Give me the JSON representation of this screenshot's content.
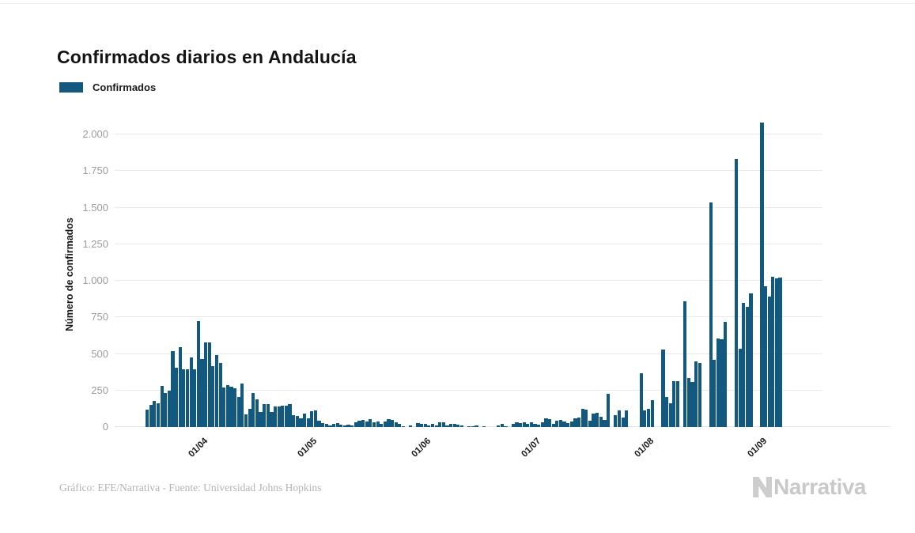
{
  "title": "Confirmados diarios en Andalucía",
  "legend": {
    "label": "Confirmados",
    "color": "#12587F"
  },
  "y_axis": {
    "title": "Número de confirmados",
    "tick_labels": [
      "0",
      "250",
      "500",
      "750",
      "1.000",
      "1.250",
      "1.500",
      "1.750",
      "2.000"
    ]
  },
  "footer": {
    "credit": "Gráfico: EFE/Narrativa - Fuente: Universidad Johns Hopkins",
    "brand": "Narrativa"
  },
  "chart_data": {
    "type": "bar",
    "title": "Confirmados diarios en Andalucía",
    "xlabel": "",
    "ylabel": "Número de confirmados",
    "ylim": [
      0,
      2000
    ],
    "y_ticks": [
      0,
      250,
      500,
      750,
      1000,
      1250,
      1500,
      1750,
      2000
    ],
    "x_tick_labels": [
      "01/04",
      "01/05",
      "01/06",
      "01/07",
      "01/08",
      "01/09"
    ],
    "grid": "horizontal",
    "legend_position": "top-left",
    "dates": [
      "17/03",
      "18/03",
      "19/03",
      "20/03",
      "21/03",
      "22/03",
      "23/03",
      "24/03",
      "25/03",
      "26/03",
      "27/03",
      "28/03",
      "29/03",
      "30/03",
      "31/03",
      "01/04",
      "02/04",
      "03/04",
      "04/04",
      "05/04",
      "06/04",
      "07/04",
      "08/04",
      "09/04",
      "10/04",
      "11/04",
      "12/04",
      "13/04",
      "14/04",
      "15/04",
      "16/04",
      "17/04",
      "18/04",
      "19/04",
      "20/04",
      "21/04",
      "22/04",
      "23/04",
      "24/04",
      "25/04",
      "26/04",
      "27/04",
      "28/04",
      "29/04",
      "30/04",
      "01/05",
      "02/05",
      "03/05",
      "04/05",
      "05/05",
      "06/05",
      "07/05",
      "08/05",
      "09/05",
      "10/05",
      "11/05",
      "12/05",
      "13/05",
      "14/05",
      "15/05",
      "16/05",
      "17/05",
      "18/05",
      "19/05",
      "20/05",
      "21/05",
      "22/05",
      "23/05",
      "24/05",
      "25/05",
      "26/05",
      "27/05",
      "28/05",
      "29/05",
      "30/05",
      "31/05",
      "01/06",
      "02/06",
      "03/06",
      "04/06",
      "05/06",
      "06/06",
      "07/06",
      "08/06",
      "09/06",
      "10/06",
      "11/06",
      "12/06",
      "13/06",
      "14/06",
      "15/06",
      "16/06",
      "17/06",
      "18/06",
      "19/06",
      "20/06",
      "21/06",
      "22/06",
      "23/06",
      "24/06",
      "25/06",
      "26/06",
      "27/06",
      "28/06",
      "29/06",
      "30/06",
      "01/07",
      "02/07",
      "03/07",
      "04/07",
      "05/07",
      "06/07",
      "07/07",
      "08/07",
      "09/07",
      "10/07",
      "11/07",
      "12/07",
      "13/07",
      "14/07",
      "15/07",
      "16/07",
      "17/07",
      "18/07",
      "19/07",
      "20/07",
      "21/07",
      "22/07",
      "23/07",
      "24/07",
      "25/07",
      "26/07",
      "27/07",
      "28/07",
      "29/07",
      "30/07",
      "31/07",
      "01/08",
      "02/08",
      "03/08",
      "04/08",
      "05/08",
      "06/08",
      "07/08",
      "08/08",
      "09/08",
      "10/08",
      "11/08",
      "12/08",
      "13/08",
      "14/08",
      "15/08",
      "16/08",
      "17/08",
      "18/08",
      "19/08",
      "20/08",
      "21/08",
      "22/08",
      "23/08",
      "24/08",
      "25/08",
      "26/08",
      "27/08",
      "28/08",
      "29/08",
      "30/08",
      "31/08",
      "01/09",
      "02/09",
      "03/09",
      "04/09",
      "05/09",
      "06/09"
    ],
    "series": [
      {
        "name": "Confirmados",
        "color": "#12587F",
        "values": [
          119,
          151,
          178,
          164,
          281,
          232,
          250,
          521,
          404,
          548,
          395,
          395,
          476,
          395,
          723,
          463,
          578,
          577,
          416,
          494,
          436,
          268,
          287,
          274,
          263,
          205,
          295,
          88,
          124,
          232,
          187,
          101,
          157,
          157,
          104,
          142,
          142,
          148,
          148,
          157,
          79,
          74,
          58,
          92,
          58,
          106,
          112,
          43,
          29,
          22,
          11,
          22,
          25,
          14,
          11,
          14,
          13,
          31,
          43,
          47,
          38,
          56,
          31,
          38,
          20,
          38,
          56,
          47,
          31,
          20,
          5,
          0,
          13,
          0,
          27,
          23,
          23,
          13,
          20,
          13,
          31,
          34,
          13,
          20,
          20,
          16,
          13,
          0,
          5,
          5,
          13,
          0,
          5,
          0,
          0,
          0,
          13,
          20,
          5,
          0,
          22,
          32,
          27,
          32,
          22,
          32,
          22,
          16,
          32,
          61,
          54,
          22,
          43,
          49,
          38,
          27,
          38,
          59,
          65,
          124,
          118,
          43,
          92,
          97,
          70,
          50,
          229,
          0,
          83,
          112,
          65,
          112,
          0,
          0,
          0,
          368,
          112,
          124,
          184,
          0,
          0,
          530,
          205,
          160,
          314,
          314,
          0,
          858,
          335,
          310,
          449,
          440,
          0,
          0,
          1535,
          458,
          605,
          598,
          719,
          0,
          0,
          1831,
          533,
          851,
          822,
          912,
          0,
          0,
          2080,
          962,
          890,
          1025,
          1016,
          1020
        ]
      }
    ]
  }
}
